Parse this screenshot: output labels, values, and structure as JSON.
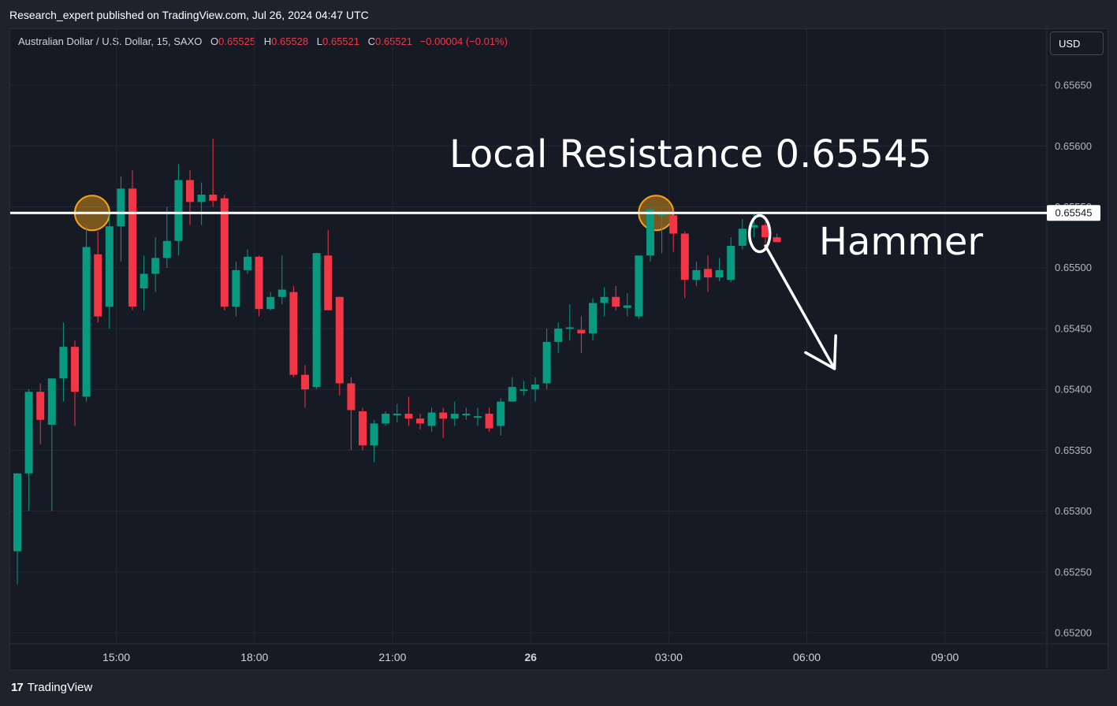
{
  "header": {
    "published": "Research_expert published on TradingView.com, Jul 26, 2024 04:47 UTC"
  },
  "legend": {
    "symbol": "Australian Dollar / U.S. Dollar, 15, SAXO",
    "o_label": "O",
    "o_value": "0.65525",
    "h_label": "H",
    "h_value": "0.65528",
    "l_label": "L",
    "l_value": "0.65521",
    "c_label": "C",
    "c_value": "0.65521",
    "change": "−0.00004 (−0.01%)"
  },
  "currency_button": "USD",
  "footer": {
    "brand": "TradingView",
    "logo_glyph": "17"
  },
  "annotations": {
    "resistance_text": "Local Resistance 0.65545",
    "hammer_text": "Hammer",
    "resistance_price_label": "0.65545"
  },
  "colors": {
    "up": "#089981",
    "down": "#f23645",
    "background": "#161a25",
    "line": "#ffffff",
    "highlight": "#f7a21b"
  },
  "chart_data": {
    "type": "candlestick",
    "symbol": "Australian Dollar / U.S. Dollar, 15, SAXO",
    "interval_minutes": 15,
    "y_ticks": [
      0.6565,
      0.656,
      0.6555,
      0.655,
      0.6545,
      0.654,
      0.6535,
      0.653,
      0.6525,
      0.652
    ],
    "y_tick_labels": [
      "0.65650",
      "0.65600",
      "0.65550",
      "0.65500",
      "0.65450",
      "0.65400",
      "0.65350",
      "0.65300",
      "0.65250",
      "0.65200"
    ],
    "ylim": [
      0.65191,
      0.65696
    ],
    "x_ticks": [
      {
        "label": "15:00",
        "bold": false,
        "bar": 8.6
      },
      {
        "label": "18:00",
        "bold": false,
        "bar": 20.6
      },
      {
        "label": "21:00",
        "bold": false,
        "bar": 32.6
      },
      {
        "label": "26",
        "bold": true,
        "bar": 44.6
      },
      {
        "label": "03:00",
        "bold": false,
        "bar": 56.6
      },
      {
        "label": "06:00",
        "bold": false,
        "bar": 68.6
      },
      {
        "label": "09:00",
        "bold": false,
        "bar": 80.6
      }
    ],
    "candles": [
      [
        0.65267,
        0.65331,
        0.6524,
        0.65331
      ],
      [
        0.65331,
        0.65398,
        0.653,
        0.654
      ],
      [
        0.65398,
        0.65375,
        0.65355,
        0.65405
      ],
      [
        0.65371,
        0.65409,
        0.653,
        0.65409
      ],
      [
        0.65409,
        0.65435,
        0.6539,
        0.65455
      ],
      [
        0.65435,
        0.65398,
        0.6537,
        0.6544
      ],
      [
        0.65394,
        0.65517,
        0.6539,
        0.65535
      ],
      [
        0.65511,
        0.6546,
        0.65455,
        0.6553
      ],
      [
        0.65468,
        0.65534,
        0.6545,
        0.65545
      ],
      [
        0.65534,
        0.65565,
        0.65505,
        0.65575
      ],
      [
        0.65565,
        0.65468,
        0.65465,
        0.6558
      ],
      [
        0.65483,
        0.65495,
        0.65465,
        0.6551
      ],
      [
        0.65495,
        0.65508,
        0.6548,
        0.65525
      ],
      [
        0.65508,
        0.65522,
        0.655,
        0.6555
      ],
      [
        0.65522,
        0.65572,
        0.6551,
        0.65585
      ],
      [
        0.65572,
        0.65554,
        0.65535,
        0.6558
      ],
      [
        0.65554,
        0.6556,
        0.65535,
        0.6557
      ],
      [
        0.6556,
        0.65555,
        0.6555,
        0.65606
      ],
      [
        0.65557,
        0.65468,
        0.65465,
        0.6556
      ],
      [
        0.65468,
        0.65498,
        0.6546,
        0.65505
      ],
      [
        0.65498,
        0.65509,
        0.65495,
        0.65515
      ],
      [
        0.65509,
        0.65466,
        0.6546,
        0.6551
      ],
      [
        0.65466,
        0.65476,
        0.65465,
        0.6548
      ],
      [
        0.65476,
        0.65482,
        0.6547,
        0.6551
      ],
      [
        0.6548,
        0.65412,
        0.6541,
        0.65485
      ],
      [
        0.65412,
        0.654,
        0.65385,
        0.6542
      ],
      [
        0.65402,
        0.65512,
        0.654,
        0.65512
      ],
      [
        0.6551,
        0.65465,
        0.65465,
        0.65531
      ],
      [
        0.65476,
        0.65405,
        0.65395,
        0.65476
      ],
      [
        0.65405,
        0.65383,
        0.6535,
        0.6541
      ],
      [
        0.65382,
        0.65354,
        0.6535,
        0.65385
      ],
      [
        0.65354,
        0.65372,
        0.6534,
        0.65375
      ],
      [
        0.65372,
        0.6538,
        0.6537,
        0.65382
      ],
      [
        0.6538,
        0.6538,
        0.65373,
        0.65388
      ],
      [
        0.6538,
        0.65376,
        0.6537,
        0.65394
      ],
      [
        0.65376,
        0.65372,
        0.65367,
        0.6538
      ],
      [
        0.6537,
        0.65381,
        0.65365,
        0.65385
      ],
      [
        0.65381,
        0.65376,
        0.6536,
        0.65385
      ],
      [
        0.65376,
        0.6538,
        0.6537,
        0.6539
      ],
      [
        0.6538,
        0.6538,
        0.65375,
        0.65385
      ],
      [
        0.65378,
        0.65378,
        0.6537,
        0.65385
      ],
      [
        0.6538,
        0.65368,
        0.65365,
        0.65385
      ],
      [
        0.6537,
        0.6539,
        0.65362,
        0.65393
      ],
      [
        0.6539,
        0.65402,
        0.6539,
        0.6541
      ],
      [
        0.65399,
        0.654,
        0.65395,
        0.65407
      ],
      [
        0.654,
        0.65404,
        0.6539,
        0.6541
      ],
      [
        0.65405,
        0.65439,
        0.654,
        0.6545
      ],
      [
        0.65439,
        0.6545,
        0.6543,
        0.65455
      ],
      [
        0.6545,
        0.65451,
        0.6544,
        0.6547
      ],
      [
        0.65449,
        0.65446,
        0.6543,
        0.6546
      ],
      [
        0.65446,
        0.65471,
        0.6544,
        0.65475
      ],
      [
        0.65471,
        0.65476,
        0.6546,
        0.65484
      ],
      [
        0.65476,
        0.65468,
        0.65465,
        0.65485
      ],
      [
        0.65467,
        0.65469,
        0.6546,
        0.65479
      ],
      [
        0.6546,
        0.6551,
        0.65458,
        0.6551
      ],
      [
        0.6551,
        0.65548,
        0.65505,
        0.6555
      ],
      [
        0.65543,
        0.65545,
        0.65512,
        0.6555
      ],
      [
        0.65543,
        0.65528,
        0.65513,
        0.65548
      ],
      [
        0.65528,
        0.6549,
        0.65475,
        0.6553
      ],
      [
        0.6549,
        0.65498,
        0.65485,
        0.65505
      ],
      [
        0.65499,
        0.65492,
        0.6548,
        0.6551
      ],
      [
        0.65492,
        0.65498,
        0.65489,
        0.65508
      ],
      [
        0.6549,
        0.65518,
        0.65488,
        0.65525
      ],
      [
        0.65518,
        0.65532,
        0.65515,
        0.6554
      ],
      [
        0.65533,
        0.65535,
        0.65525,
        0.65545
      ],
      [
        0.65535,
        0.65525,
        0.6552,
        0.65538
      ],
      [
        0.65525,
        0.65521,
        0.65521,
        0.65528
      ]
    ],
    "horizontal_line": 0.65545,
    "markers": [
      {
        "type": "circle",
        "bar": 6.5,
        "price": 0.65545,
        "style": "orange"
      },
      {
        "type": "circle",
        "bar": 55.5,
        "price": 0.65545,
        "style": "orange"
      },
      {
        "type": "ellipse",
        "bar": 64.5,
        "price": 0.65528,
        "style": "white"
      }
    ],
    "arrow": {
      "from_bar": 65,
      "from_price": 0.65518,
      "to_bar": 71,
      "to_price": 0.65417
    }
  }
}
